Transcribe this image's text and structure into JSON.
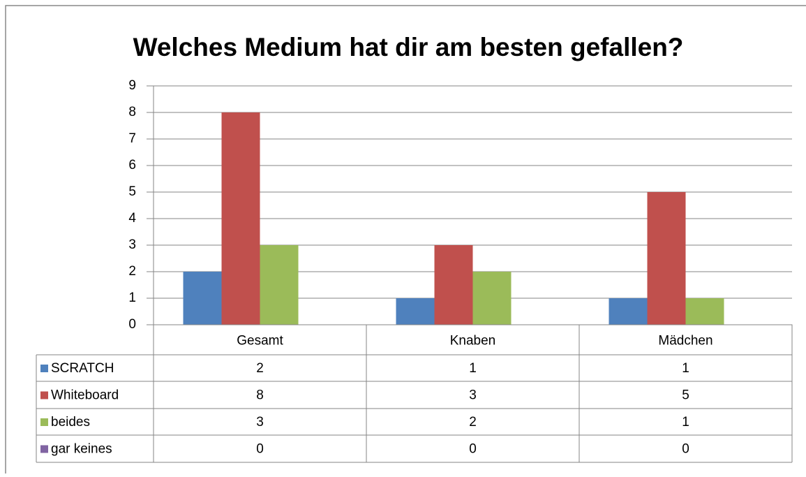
{
  "chart_data": {
    "type": "bar",
    "title": "Welches Medium hat dir am besten gefallen?",
    "categories": [
      "Gesamt",
      "Knaben",
      "Mädchen"
    ],
    "series": [
      {
        "name": "SCRATCH",
        "color": "#4f81bd",
        "values": [
          2,
          1,
          1
        ]
      },
      {
        "name": "Whiteboard",
        "color": "#c0504d",
        "values": [
          8,
          3,
          5
        ]
      },
      {
        "name": "beides",
        "color": "#9bbb59",
        "values": [
          3,
          2,
          1
        ]
      },
      {
        "name": "gar keines",
        "color": "#8064a2",
        "values": [
          0,
          0,
          0
        ]
      }
    ],
    "ylim": [
      0,
      9
    ],
    "yticks": [
      0,
      1,
      2,
      3,
      4,
      5,
      6,
      7,
      8,
      9
    ],
    "grid": true,
    "data_table": true
  }
}
